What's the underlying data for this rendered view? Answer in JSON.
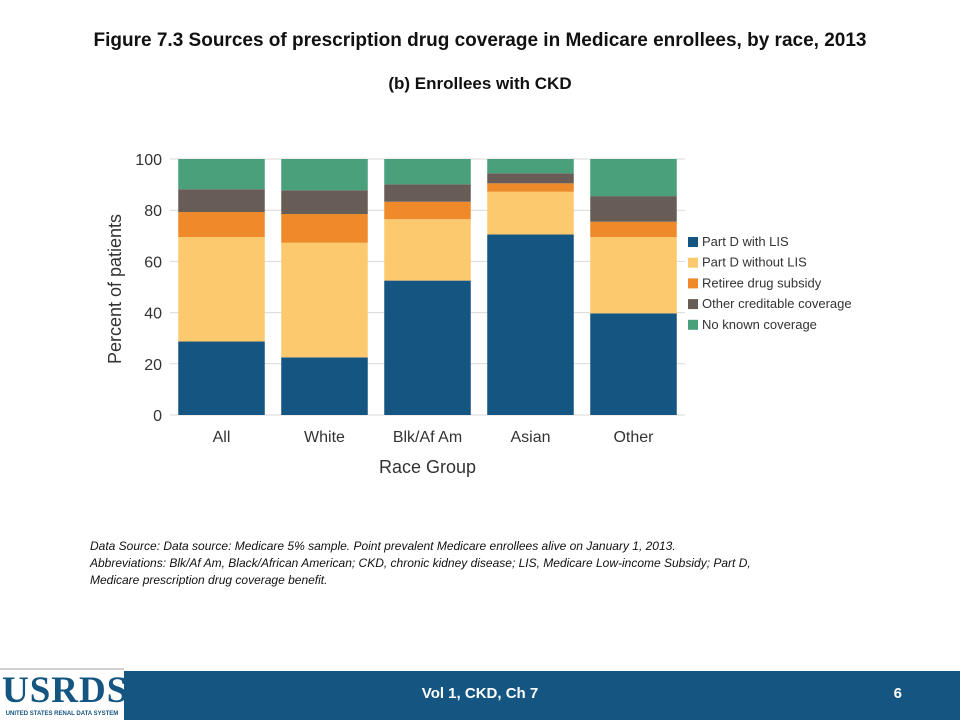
{
  "title": "Figure 7.3 Sources of prescription drug coverage in Medicare enrollees, by race, 2013",
  "subtitle": "(b) Enrollees with CKD",
  "chart_data": {
    "type": "bar",
    "stacked": true,
    "categories": [
      "All",
      "White",
      "Blk/Af Am",
      "Asian",
      "Other"
    ],
    "series": [
      {
        "name": "Part D with LIS",
        "color": "#155581",
        "values": [
          28.7,
          22.5,
          52.5,
          70.5,
          39.7
        ]
      },
      {
        "name": "Part D without LIS",
        "color": "#fdc96f",
        "values": [
          40.8,
          44.8,
          24.0,
          16.7,
          29.8
        ]
      },
      {
        "name": "Retiree drug subsidy",
        "color": "#ee8a2a",
        "values": [
          9.8,
          11.2,
          6.8,
          3.3,
          6.0
        ]
      },
      {
        "name": "Other creditable coverage",
        "color": "#675c56",
        "values": [
          8.9,
          9.3,
          6.8,
          3.9,
          10.0
        ]
      },
      {
        "name": "No known coverage",
        "color": "#49a07a",
        "values": [
          11.8,
          12.2,
          9.9,
          5.6,
          14.5
        ]
      }
    ],
    "xlabel": "Race Group",
    "ylabel": "Percent of patients",
    "ylim": [
      0,
      100
    ],
    "yticks": [
      0,
      20,
      40,
      60,
      80,
      100
    ],
    "grid": true,
    "legend_position": "right"
  },
  "footnote": {
    "line1": "Data Source: Data source: Medicare 5% sample. Point prevalent Medicare enrollees alive on January 1, 2013.",
    "line2": "Abbreviations: Blk/Af Am, Black/African American; CKD, chronic kidney disease; LIS, Medicare Low-income Subsidy; Part D,",
    "line3": "Medicare prescription drug coverage benefit."
  },
  "footer": {
    "center_text": "Vol 1, CKD, Ch 7",
    "page_number": "6",
    "logo_text": "USRDS",
    "logo_subtext": "UNITED STATES RENAL DATA SYSTEM"
  }
}
